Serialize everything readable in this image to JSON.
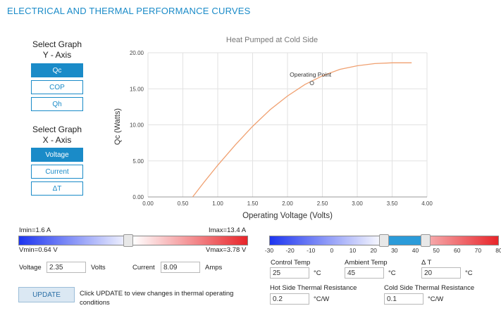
{
  "header": {
    "title": "ELECTRICAL AND THERMAL PERFORMANCE CURVES"
  },
  "y_axis_selector": {
    "label_line1": "Select Graph",
    "label_line2": "Y - Axis",
    "options": [
      "Qc",
      "COP",
      "Qh"
    ],
    "selected": "Qc"
  },
  "x_axis_selector": {
    "label_line1": "Select Graph",
    "label_line2": "X - Axis",
    "options": [
      "Voltage",
      "Current",
      "ΔT"
    ],
    "selected": "Voltage"
  },
  "chart_data": {
    "type": "line",
    "title": "Heat Pumped at Cold Side",
    "xlabel": "Operating Voltage (Volts)",
    "ylabel": "Qc (Watts)",
    "xlim": [
      0,
      4
    ],
    "ylim": [
      0,
      20
    ],
    "x_ticks": [
      "0.00",
      "0.50",
      "1.00",
      "1.50",
      "2.00",
      "2.50",
      "3.00",
      "3.50",
      "4.00"
    ],
    "y_ticks": [
      "0.00",
      "5.00",
      "10.00",
      "15.00",
      "20.00"
    ],
    "grid": true,
    "series": [
      {
        "color": "#f0a070",
        "x": [
          0.64,
          0.8,
          1.0,
          1.25,
          1.5,
          1.75,
          2.0,
          2.25,
          2.5,
          2.75,
          3.0,
          3.25,
          3.5,
          3.78
        ],
        "y": [
          0.0,
          2.0,
          4.4,
          7.2,
          9.8,
          12.1,
          14.0,
          15.6,
          16.8,
          17.7,
          18.2,
          18.5,
          18.6,
          18.6
        ]
      }
    ],
    "annotation": {
      "text": "Operating Point",
      "x": 2.35,
      "y": 15.8
    }
  },
  "current_slider": {
    "min_label": "Imin=1.6 A",
    "max_label": "Imax=13.4 A",
    "vmin_label": "Vmin=0.64 V",
    "vmax_label": "Vmax=3.78 V",
    "fraction": 0.48,
    "color_left": "#1d35f0",
    "color_right": "#e8252a"
  },
  "operating": {
    "voltage_label": "Voltage",
    "voltage_value": "2.35",
    "voltage_unit": "Volts",
    "current_label": "Current",
    "current_value": "8.09",
    "current_unit": "Amps"
  },
  "temperature_scale": {
    "ticks": [
      "-30",
      "-20",
      "-10",
      "0",
      "10",
      "20",
      "30",
      "40",
      "50",
      "60",
      "70",
      "80"
    ],
    "range": [
      -30,
      80
    ],
    "control_thumb": 25,
    "ambient_thumb": 45,
    "color_cold": "#1d35f0",
    "color_hot": "#e8252a",
    "band_color": "#2b9bd9"
  },
  "temps": {
    "control_label": "Control Temp",
    "control_value": "25",
    "control_unit": "°C",
    "ambient_label": "Ambient Temp",
    "ambient_value": "45",
    "ambient_unit": "°C",
    "delta_label": "Δ T",
    "delta_value": "20",
    "delta_unit": "°C"
  },
  "resistance": {
    "hot_label": "Hot Side Thermal Resistance",
    "hot_value": "0.2",
    "hot_unit": "°C/W",
    "cold_label": "Cold Side Thermal Resistance",
    "cold_value": "0.1",
    "cold_unit": "°C/W"
  },
  "update": {
    "button_label": "UPDATE",
    "hint": "Click UPDATE to view changes in thermal operating conditions"
  }
}
